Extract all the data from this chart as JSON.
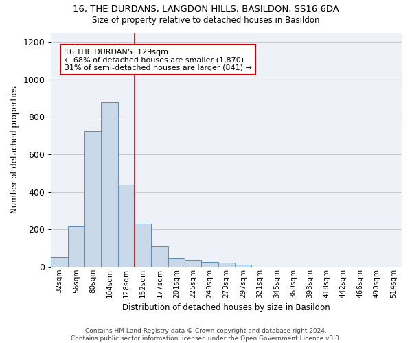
{
  "title1": "16, THE DURDANS, LANGDON HILLS, BASILDON, SS16 6DA",
  "title2": "Size of property relative to detached houses in Basildon",
  "xlabel": "Distribution of detached houses by size in Basildon",
  "ylabel": "Number of detached properties",
  "categories": [
    "32sqm",
    "56sqm",
    "80sqm",
    "104sqm",
    "128sqm",
    "152sqm",
    "177sqm",
    "201sqm",
    "225sqm",
    "249sqm",
    "273sqm",
    "297sqm",
    "321sqm",
    "345sqm",
    "369sqm",
    "393sqm",
    "418sqm",
    "442sqm",
    "466sqm",
    "490sqm",
    "514sqm"
  ],
  "values": [
    50,
    215,
    725,
    880,
    440,
    230,
    108,
    47,
    37,
    25,
    20,
    10,
    0,
    0,
    0,
    0,
    0,
    0,
    0,
    0,
    0
  ],
  "bar_color": "#c8d8e8",
  "bar_edge_color": "#5b8db8",
  "vline_x": 4.5,
  "annotation_text": "16 THE DURDANS: 129sqm\n← 68% of detached houses are smaller (1,870)\n31% of semi-detached houses are larger (841) →",
  "annotation_box_color": "#ffffff",
  "annotation_box_edge_color": "#cc0000",
  "footer_text": "Contains HM Land Registry data © Crown copyright and database right 2024.\nContains public sector information licensed under the Open Government Licence v3.0.",
  "ylim": [
    0,
    1250
  ],
  "yticks": [
    0,
    200,
    400,
    600,
    800,
    1000,
    1200
  ],
  "grid_color": "#cccccc",
  "background_color": "#eef2f8"
}
